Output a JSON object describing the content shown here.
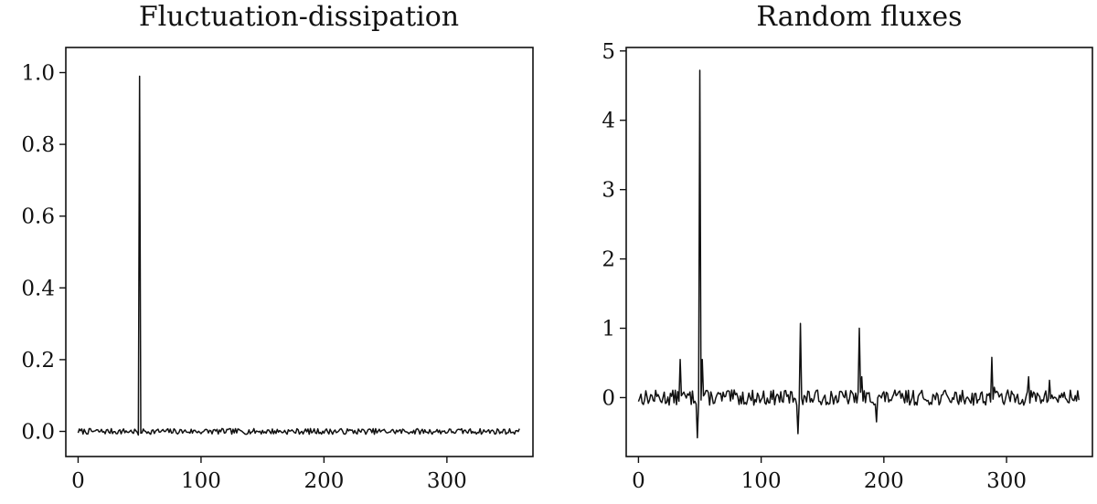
{
  "chart_data": [
    {
      "type": "line",
      "title": "Fluctuation-dissipation",
      "xlabel": "",
      "ylabel": "",
      "xlim": [
        -10,
        370
      ],
      "ylim": [
        -0.07,
        1.07
      ],
      "xticks": [
        0,
        100,
        200,
        300
      ],
      "xtick_labels": [
        "0",
        "100",
        "200",
        "300"
      ],
      "yticks": [
        0.0,
        0.2,
        0.4,
        0.6,
        0.8,
        1.0
      ],
      "ytick_labels": [
        "0.0",
        "0.2",
        "0.4",
        "0.6",
        "0.8",
        "1.0"
      ],
      "grid": false,
      "color": "#111111",
      "noise": {
        "x_start": 0,
        "x_end": 359,
        "amplitude": 0.008,
        "seed": 7
      },
      "spikes": [
        {
          "x": 49,
          "y": -0.01
        },
        {
          "x": 50,
          "y": 0.99
        },
        {
          "x": 51,
          "y": -0.005
        }
      ]
    },
    {
      "type": "line",
      "title": "Random fluxes",
      "xlabel": "",
      "ylabel": "",
      "xlim": [
        -10,
        370
      ],
      "ylim": [
        -0.85,
        5.05
      ],
      "xticks": [
        0,
        100,
        200,
        300
      ],
      "xtick_labels": [
        "0",
        "100",
        "200",
        "300"
      ],
      "yticks": [
        0,
        1,
        2,
        3,
        4,
        5
      ],
      "ytick_labels": [
        "0",
        "1",
        "2",
        "3",
        "4",
        "5"
      ],
      "grid": false,
      "color": "#111111",
      "noise": {
        "x_start": 0,
        "x_end": 359,
        "amplitude": 0.11,
        "seed": 13
      },
      "spikes": [
        {
          "x": 34,
          "y": 0.55
        },
        {
          "x": 48,
          "y": -0.58
        },
        {
          "x": 50,
          "y": 4.72
        },
        {
          "x": 52,
          "y": 0.55
        },
        {
          "x": 54,
          "y": 0.05
        },
        {
          "x": 130,
          "y": -0.52
        },
        {
          "x": 132,
          "y": 1.07
        },
        {
          "x": 134,
          "y": -0.1
        },
        {
          "x": 180,
          "y": 1.0
        },
        {
          "x": 182,
          "y": 0.3
        },
        {
          "x": 194,
          "y": -0.35
        },
        {
          "x": 288,
          "y": 0.58
        },
        {
          "x": 290,
          "y": 0.15
        },
        {
          "x": 318,
          "y": 0.3
        },
        {
          "x": 335,
          "y": 0.25
        }
      ]
    }
  ]
}
